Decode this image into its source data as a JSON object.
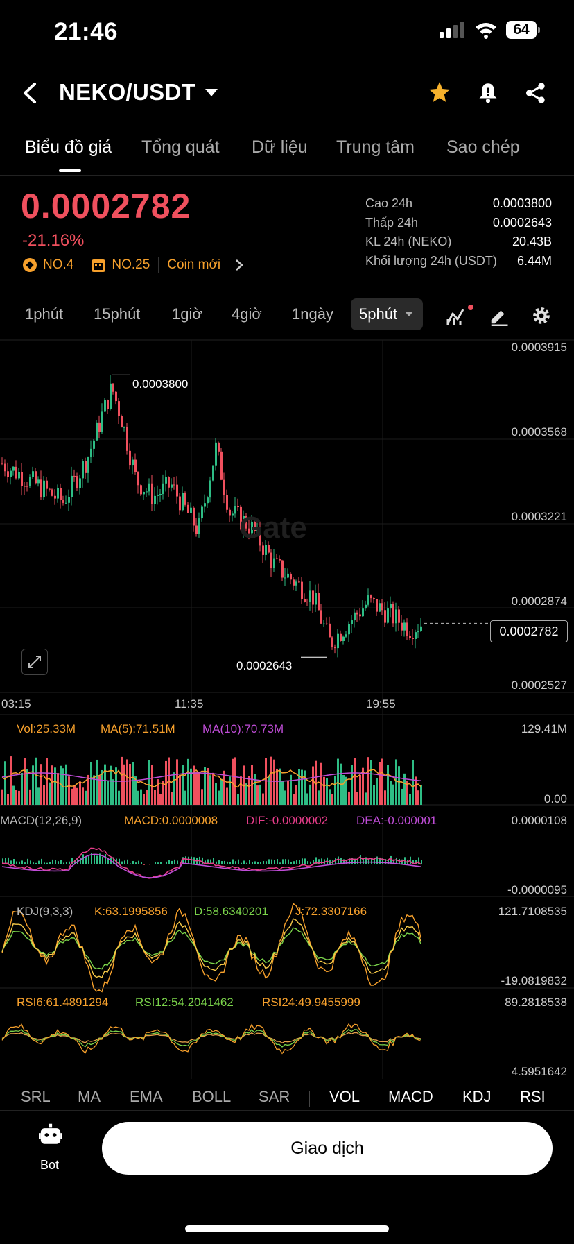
{
  "status": {
    "time": "21:46",
    "battery": "64"
  },
  "header": {
    "pair": "NEKO/USDT"
  },
  "tabs": [
    "Biểu đồ giá",
    "Tổng quát",
    "Dữ liệu",
    "Trung tâm",
    "Sao chép"
  ],
  "ticker": {
    "price": "0.0002782",
    "change": "-21.16%",
    "badges": [
      "NO.4",
      "NO.25"
    ],
    "new_coin": "Coin mới",
    "stats": [
      {
        "label": "Cao 24h",
        "value": "0.0003800"
      },
      {
        "label": "Thấp 24h",
        "value": "0.0002643"
      },
      {
        "label": "KL 24h (NEKO)",
        "value": "20.43B"
      },
      {
        "label": "Khối lượng 24h (USDT)",
        "value": "6.44M"
      }
    ]
  },
  "timeframes": [
    "1phút",
    "15phút",
    "1giờ",
    "4giờ",
    "1ngày"
  ],
  "timeframe_active": "5phút",
  "chart": {
    "y_labels": [
      "0.0003915",
      "0.0003568",
      "0.0003221",
      "0.0002874",
      "0.0002527"
    ],
    "x_labels": [
      "03:15",
      "11:35",
      "19:55"
    ],
    "high_label": "0.0003800",
    "low_label": "0.0002643",
    "last_price": "0.0002782",
    "watermark": "Gate"
  },
  "chart_data": {
    "type": "candlestick",
    "x": [
      "03:15",
      "11:35",
      "19:55"
    ],
    "ylim": [
      0.0002527,
      0.0003915
    ],
    "high": 0.00038,
    "low": 0.0002643,
    "last": 0.0002782
  },
  "volume": {
    "vol": "Vol:25.33M",
    "ma5": "MA(5):71.51M",
    "ma10": "MA(10):70.73M",
    "max": "129.41M",
    "min": "0.00"
  },
  "macd": {
    "title": "MACD(12,26,9)",
    "macd": "MACD:0.0000008",
    "dif": "DIF:-0.0000002",
    "dea": "DEA:-0.000001",
    "max": "0.0000108",
    "min": "-0.0000095"
  },
  "kdj": {
    "title": "KDJ(9,3,3)",
    "k": "K:63.1995856",
    "d": "D:58.6340201",
    "j": "J:72.3307166",
    "max": "121.7108535",
    "min": "-19.0819832"
  },
  "rsi": {
    "r6": "RSI6:61.4891294",
    "r12": "RSI12:54.2041462",
    "r24": "RSI24:49.9455999",
    "max": "89.2818538",
    "min": "4.5951642"
  },
  "indicator_tabs": [
    "SRL",
    "MA",
    "EMA",
    "BOLL",
    "SAR",
    "VOL",
    "MACD",
    "KDJ",
    "RSI"
  ],
  "footer": {
    "bot": "Bot",
    "trade": "Giao dịch"
  },
  "colors": {
    "up": "#2ebd85",
    "down": "#f0505e",
    "accent": "#f6a02c"
  }
}
